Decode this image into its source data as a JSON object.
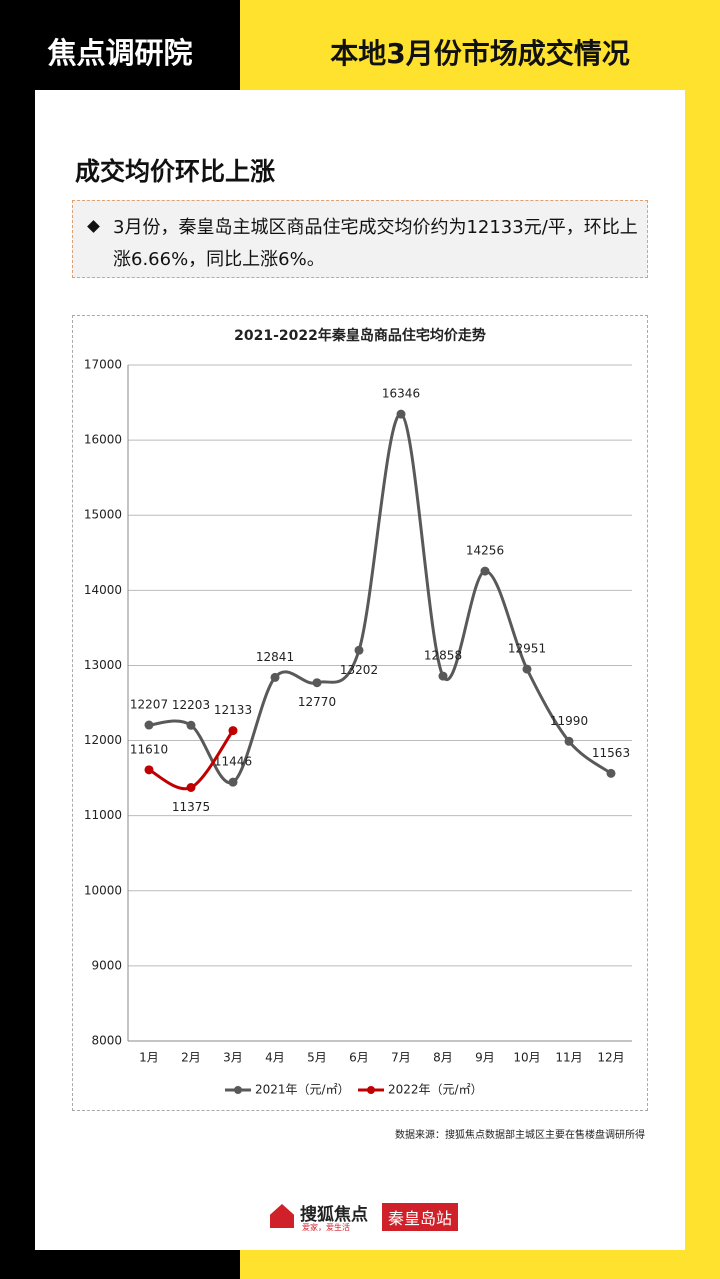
{
  "header": {
    "brand": "焦点调研院",
    "title": "本地3月份市场成交情况"
  },
  "section": {
    "title": "成交均价环比上涨",
    "text": "3月份，秦皇岛主城区商品住宅成交均价约为12133元/平，环比上涨6.66%，同比上涨6%。"
  },
  "chart_data": {
    "type": "line",
    "title": "2021-2022年秦皇岛商品住宅均价走势",
    "categories": [
      "1月",
      "2月",
      "3月",
      "4月",
      "5月",
      "6月",
      "7月",
      "8月",
      "9月",
      "10月",
      "11月",
      "12月"
    ],
    "series": [
      {
        "name": "2021年（元/㎡）",
        "color": "#595959",
        "values": [
          12207,
          12203,
          11446,
          12841,
          12770,
          13202,
          16346,
          12858,
          14256,
          12951,
          11990,
          11563
        ]
      },
      {
        "name": "2022年（元/㎡）",
        "color": "#c00000",
        "values": [
          11610,
          11375,
          12133,
          null,
          null,
          null,
          null,
          null,
          null,
          null,
          null,
          null
        ]
      }
    ],
    "ylim": [
      8000,
      17000
    ],
    "yticks": [
      8000,
      9000,
      10000,
      11000,
      12000,
      13000,
      14000,
      15000,
      16000,
      17000
    ],
    "grid": true,
    "legend": "bottom",
    "source": "数据来源：搜狐焦点数据部主城区主要在售楼盘调研所得"
  },
  "footer": {
    "logo": "搜狐焦点",
    "slogan": "爱家，爱生活",
    "station": "秦皇岛站"
  }
}
